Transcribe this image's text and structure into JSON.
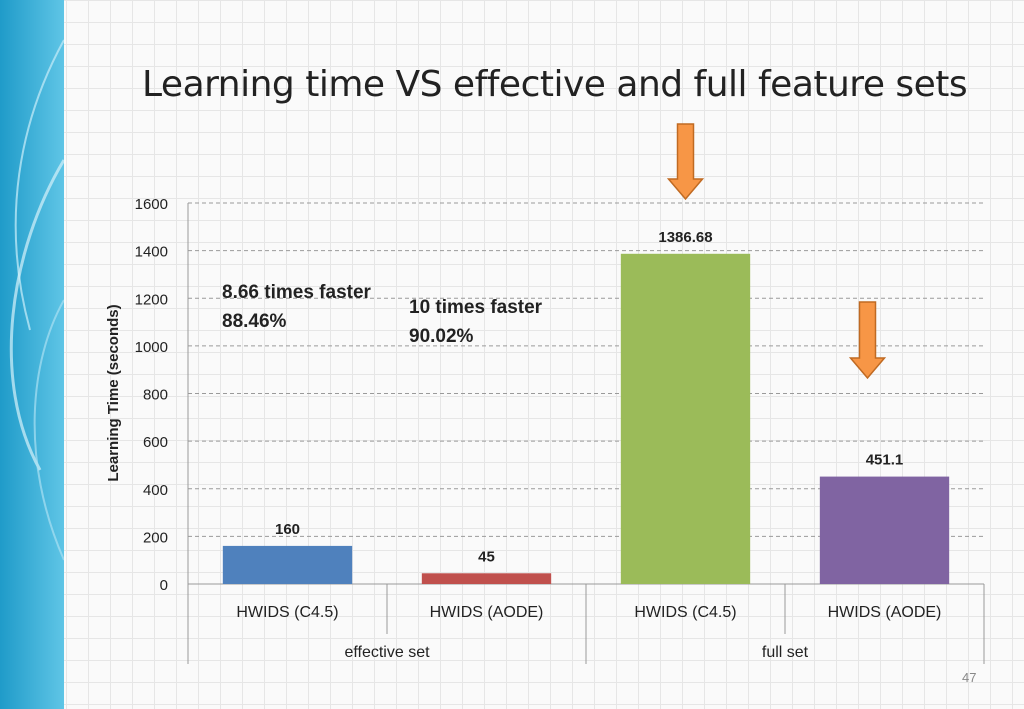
{
  "slide": {
    "title": "Learning time VS effective and full feature sets",
    "page_number": "47"
  },
  "colors": {
    "bar_c45_effective": "#4f81bd",
    "bar_aode_effective": "#c0504d",
    "bar_c45_full": "#9bbb59",
    "bar_aode_full": "#8064a2",
    "arrow": "#f79646"
  },
  "chart_data": {
    "type": "bar",
    "ylabel": "Learning Time (seconds)",
    "ylim": [
      0,
      1600
    ],
    "yticks": [
      "0",
      "200",
      "400",
      "600",
      "800",
      "1000",
      "1200",
      "1400",
      "1600"
    ],
    "ytick_values": [
      0,
      200,
      400,
      600,
      800,
      1000,
      1200,
      1400,
      1600
    ],
    "grid": true,
    "categories": [
      "HWIDS (C4.5)",
      "HWIDS (AODE)",
      "HWIDS (C4.5)",
      "HWIDS (AODE)"
    ],
    "groups": [
      {
        "label": "effective set",
        "span": [
          0,
          1
        ]
      },
      {
        "label": "full set",
        "span": [
          2,
          3
        ]
      }
    ],
    "values": [
      160,
      45,
      1386.68,
      451.1
    ],
    "value_labels": [
      "160",
      "45",
      "1386.68",
      "451.1"
    ],
    "bar_colors": [
      "#4f81bd",
      "#c0504d",
      "#9bbb59",
      "#8064a2"
    ],
    "annotations": [
      {
        "lines": [
          "8.66 times faster",
          "88.46%"
        ],
        "anchor_category": 0
      },
      {
        "lines": [
          "10 times faster",
          "90.02%"
        ],
        "anchor_category": 1
      }
    ],
    "arrows_over_categories": [
      2,
      3
    ]
  }
}
